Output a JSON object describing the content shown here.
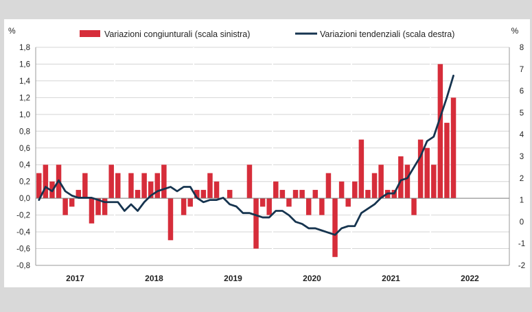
{
  "chart_data": {
    "type": "bar+line",
    "title": "",
    "left_axis": {
      "unit": "%",
      "ylim": [
        -0.8,
        1.8
      ],
      "ticks": [
        1.8,
        1.6,
        1.4,
        1.2,
        1.0,
        0.8,
        0.6,
        0.4,
        0.2,
        0.0,
        -0.2,
        -0.4,
        -0.6,
        -0.8
      ],
      "tick_labels": [
        "1,8",
        "1,6",
        "1,4",
        "1,2",
        "1,0",
        "0,8",
        "0,6",
        "0,4",
        "0,2",
        "0,0",
        "-0,2",
        "-0,4",
        "-0,6",
        "-0,8"
      ]
    },
    "right_axis": {
      "unit": "%",
      "ylim": [
        -2,
        8
      ],
      "ticks": [
        8,
        7,
        6,
        5,
        4,
        3,
        2,
        1,
        0,
        -1,
        -2
      ],
      "tick_labels": [
        "8",
        "7",
        "6",
        "5",
        "4",
        "3",
        "2",
        "1",
        "0",
        "-1",
        "-2"
      ]
    },
    "years": [
      "2017",
      "2018",
      "2019",
      "2020",
      "2021",
      "2022"
    ],
    "x_months_total": 72,
    "grid": true,
    "legend_position": "top-center",
    "series": [
      {
        "name": "Variazioni congiunturali (scala sinistra)",
        "type": "bar",
        "axis": "left",
        "color": "#d62d3a",
        "values": [
          0.3,
          0.4,
          0.2,
          0.4,
          -0.2,
          -0.1,
          0.1,
          0.3,
          -0.3,
          -0.2,
          -0.2,
          0.4,
          0.3,
          0.0,
          0.3,
          0.1,
          0.3,
          0.2,
          0.3,
          0.4,
          -0.5,
          0.0,
          -0.2,
          -0.1,
          0.1,
          0.1,
          0.3,
          0.2,
          0.0,
          0.1,
          0.0,
          0.0,
          0.4,
          -0.6,
          -0.1,
          -0.2,
          0.2,
          0.1,
          -0.1,
          0.1,
          0.1,
          -0.2,
          0.1,
          -0.2,
          0.3,
          -0.7,
          0.2,
          -0.1,
          0.2,
          0.7,
          0.1,
          0.3,
          0.4,
          0.1,
          0.1,
          0.5,
          0.4,
          -0.2,
          0.7,
          0.6,
          0.4,
          1.6,
          0.9,
          1.2
        ]
      },
      {
        "name": "Variazioni tendenziali (scala destra)",
        "type": "line",
        "axis": "right",
        "color": "#16344f",
        "values": [
          1.0,
          1.6,
          1.4,
          1.9,
          1.4,
          1.2,
          1.1,
          1.1,
          1.1,
          1.0,
          0.9,
          0.9,
          0.9,
          0.5,
          0.8,
          0.5,
          0.9,
          1.2,
          1.4,
          1.5,
          1.6,
          1.4,
          1.6,
          1.6,
          1.1,
          0.9,
          1.0,
          1.0,
          1.1,
          0.8,
          0.7,
          0.4,
          0.4,
          0.3,
          0.2,
          0.2,
          0.5,
          0.5,
          0.3,
          0.0,
          -0.1,
          -0.3,
          -0.3,
          -0.4,
          -0.5,
          -0.6,
          -0.3,
          -0.2,
          -0.2,
          0.4,
          0.6,
          0.8,
          1.1,
          1.3,
          1.3,
          1.9,
          2.0,
          2.5,
          3.0,
          3.7,
          3.9,
          4.8,
          5.7,
          6.7
        ]
      }
    ]
  }
}
